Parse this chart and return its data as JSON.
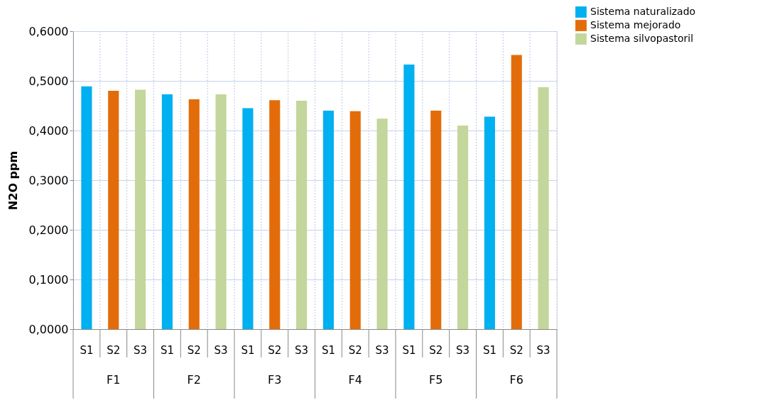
{
  "chart_data": {
    "type": "bar",
    "ylabel": "N2O ppm",
    "categories": [
      "S1",
      "S2",
      "S3",
      "S1",
      "S2",
      "S3",
      "S1",
      "S2",
      "S3",
      "S1",
      "S2",
      "S3",
      "S1",
      "S2",
      "S3",
      "S1",
      "S2",
      "S3"
    ],
    "annotations": [
      "F1",
      "F2",
      "F3",
      "F4",
      "F5",
      "F6"
    ],
    "series": [
      {
        "name": "Sistema naturalizado",
        "color": "#00b0f0",
        "values": [
          0.489,
          null,
          null,
          0.473,
          null,
          null,
          0.445,
          null,
          null,
          0.44,
          null,
          null,
          0.533,
          null,
          null,
          0.428,
          null,
          null
        ]
      },
      {
        "name": "Sistema mejorado",
        "color": "#e36c0a",
        "values": [
          null,
          0.48,
          null,
          null,
          0.463,
          null,
          null,
          0.461,
          null,
          null,
          0.439,
          null,
          null,
          0.44,
          null,
          null,
          0.552,
          null
        ]
      },
      {
        "name": "Sistema silvopastoril",
        "color": "#c3d69b",
        "values": [
          null,
          null,
          0.482,
          null,
          null,
          0.473,
          null,
          null,
          0.46,
          null,
          null,
          0.424,
          null,
          null,
          0.41,
          null,
          null,
          0.487
        ]
      }
    ],
    "ylim": [
      0,
      0.6
    ],
    "yticks": [
      {
        "value": 0,
        "label": "0,0000"
      },
      {
        "value": 0.1,
        "label": "0,1000"
      },
      {
        "value": 0.2,
        "label": "0,2000"
      },
      {
        "value": 0.3,
        "label": "0,3000"
      },
      {
        "value": 0.4,
        "label": "0,4000"
      },
      {
        "value": 0.5,
        "label": "0,5000"
      },
      {
        "value": 0.6,
        "label": "0,6000"
      }
    ],
    "grid": true,
    "legend": "top right"
  }
}
